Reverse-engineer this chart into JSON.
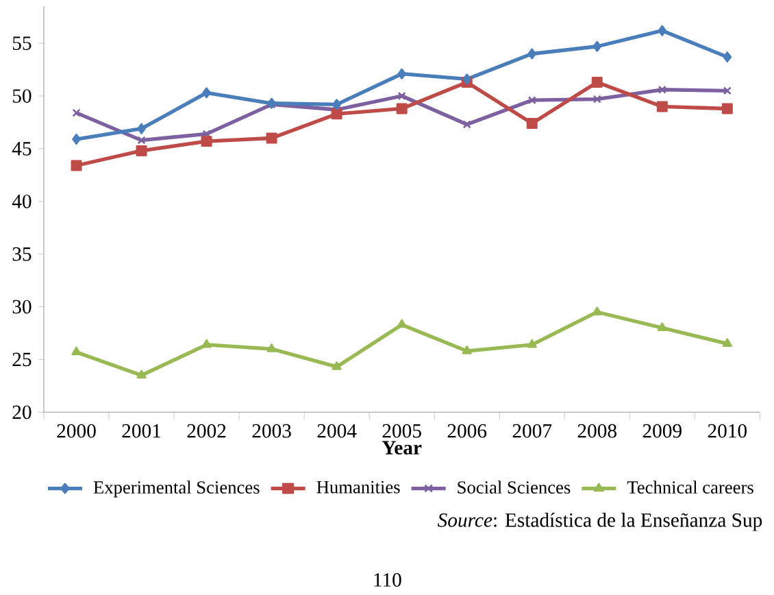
{
  "chart_data": {
    "type": "line",
    "xlabel": "Year",
    "categories": [
      "2000",
      "2001",
      "2002",
      "2003",
      "2004",
      "2005",
      "2006",
      "2007",
      "2008",
      "2009",
      "2010"
    ],
    "ylim": [
      20,
      58.5
    ],
    "yticks": [
      20,
      25,
      30,
      35,
      40,
      45,
      50,
      55
    ],
    "grid": false,
    "legend": "bottom",
    "line_style": "solid",
    "series": [
      {
        "name": "Experimental Sciences",
        "color": "#4a7ebb",
        "marker": "diamond",
        "values": [
          45.9,
          46.9,
          50.3,
          49.3,
          49.2,
          52.1,
          51.6,
          54.0,
          54.7,
          56.2,
          53.7
        ]
      },
      {
        "name": "Humanities",
        "color": "#be4b48",
        "marker": "square",
        "values": [
          43.4,
          44.8,
          45.7,
          46.0,
          48.3,
          48.8,
          51.3,
          47.4,
          51.3,
          49.0,
          48.8
        ]
      },
      {
        "name": "Social Sciences",
        "color": "#7d60a0",
        "marker": "cross",
        "values": [
          48.4,
          45.8,
          46.4,
          49.2,
          48.7,
          50.0,
          47.3,
          49.6,
          49.7,
          50.6,
          50.5
        ]
      },
      {
        "name": "Technical careers",
        "color": "#98b954",
        "marker": "triangle",
        "values": [
          25.7,
          23.5,
          26.4,
          26.0,
          24.3,
          28.3,
          25.8,
          26.4,
          29.5,
          28.0,
          26.5
        ]
      }
    ],
    "annotations": [
      "*Source*: Estadística de la Enseñanza Sup",
      "110"
    ]
  }
}
